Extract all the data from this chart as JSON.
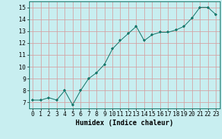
{
  "x": [
    0,
    1,
    2,
    3,
    4,
    5,
    6,
    7,
    8,
    9,
    10,
    11,
    12,
    13,
    14,
    15,
    16,
    17,
    18,
    19,
    20,
    21,
    22,
    23
  ],
  "y": [
    7.2,
    7.2,
    7.4,
    7.2,
    8.0,
    6.8,
    8.0,
    9.0,
    9.5,
    10.2,
    11.5,
    12.2,
    12.8,
    13.4,
    12.2,
    12.7,
    12.9,
    12.9,
    13.1,
    13.4,
    14.1,
    15.0,
    15.0,
    14.4
  ],
  "xlabel": "Humidex (Indice chaleur)",
  "ylim": [
    6.5,
    15.5
  ],
  "xlim": [
    -0.5,
    23.5
  ],
  "yticks": [
    7,
    8,
    9,
    10,
    11,
    12,
    13,
    14,
    15
  ],
  "xticks": [
    0,
    1,
    2,
    3,
    4,
    5,
    6,
    7,
    8,
    9,
    10,
    11,
    12,
    13,
    14,
    15,
    16,
    17,
    18,
    19,
    20,
    21,
    22,
    23
  ],
  "line_color": "#1a7a6e",
  "marker_color": "#1a7a6e",
  "bg_color": "#c8eef0",
  "grid_color": "#d4a0a0",
  "xlabel_fontsize": 7.0,
  "tick_fontsize": 6.0
}
